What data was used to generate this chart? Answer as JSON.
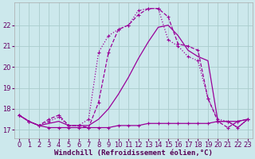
{
  "background_color": "#cce8ec",
  "grid_color": "#aacccc",
  "line_color": "#990099",
  "xlabel": "Windchill (Refroidissement éolien,°C)",
  "xlabel_fontsize": 6.5,
  "tick_fontsize": 6,
  "xlim": [
    -0.5,
    23.5
  ],
  "ylim": [
    16.6,
    23.1
  ],
  "yticks": [
    17,
    18,
    19,
    20,
    21,
    22
  ],
  "xticks": [
    0,
    1,
    2,
    3,
    4,
    5,
    6,
    7,
    8,
    9,
    10,
    11,
    12,
    13,
    14,
    15,
    16,
    17,
    18,
    19,
    20,
    21,
    22,
    23
  ],
  "s1_x": [
    0,
    1,
    2,
    3,
    4,
    5,
    6,
    7,
    8,
    9,
    10,
    11,
    12,
    13,
    14,
    15,
    16,
    17,
    18,
    19,
    20,
    21,
    22,
    23
  ],
  "s1_y": [
    17.7,
    17.4,
    17.2,
    17.1,
    17.1,
    17.1,
    17.1,
    17.1,
    17.1,
    17.1,
    17.2,
    17.2,
    17.2,
    17.3,
    17.3,
    17.3,
    17.3,
    17.3,
    17.3,
    17.3,
    17.4,
    17.4,
    17.4,
    17.5
  ],
  "s2_x": [
    0,
    1,
    2,
    3,
    4,
    5,
    6,
    7,
    8,
    9,
    10,
    11,
    12,
    13,
    14,
    15,
    16,
    17,
    18,
    19,
    20,
    21,
    22,
    23
  ],
  "s2_y": [
    17.7,
    17.4,
    17.2,
    17.3,
    17.4,
    17.2,
    17.2,
    17.2,
    17.5,
    18.0,
    18.7,
    19.5,
    20.4,
    21.2,
    21.9,
    22.0,
    21.5,
    20.8,
    20.5,
    20.3,
    17.4,
    17.4,
    17.1,
    17.5
  ],
  "s3_x": [
    0,
    1,
    2,
    3,
    4,
    5,
    6,
    7,
    8,
    9,
    10,
    11,
    12,
    13,
    14,
    15,
    16,
    17,
    18,
    19,
    20,
    21,
    22,
    23
  ],
  "s3_y": [
    17.7,
    17.4,
    17.2,
    17.5,
    17.7,
    17.2,
    17.2,
    17.1,
    18.3,
    20.7,
    21.8,
    22.0,
    22.5,
    22.8,
    22.8,
    22.4,
    21.1,
    21.0,
    20.8,
    18.5,
    17.4,
    17.1,
    17.4,
    17.5
  ],
  "s4_x": [
    0,
    1,
    2,
    3,
    4,
    5,
    6,
    7,
    8,
    9,
    10,
    11,
    12,
    13,
    14,
    15,
    16,
    17,
    18,
    19,
    20,
    21,
    22,
    23
  ],
  "s4_y": [
    17.7,
    17.4,
    17.2,
    17.4,
    17.6,
    17.2,
    17.2,
    17.5,
    20.7,
    21.5,
    21.8,
    22.0,
    22.7,
    22.8,
    22.8,
    21.3,
    21.0,
    20.5,
    20.3,
    18.5,
    17.5,
    17.4,
    17.1,
    17.5
  ]
}
